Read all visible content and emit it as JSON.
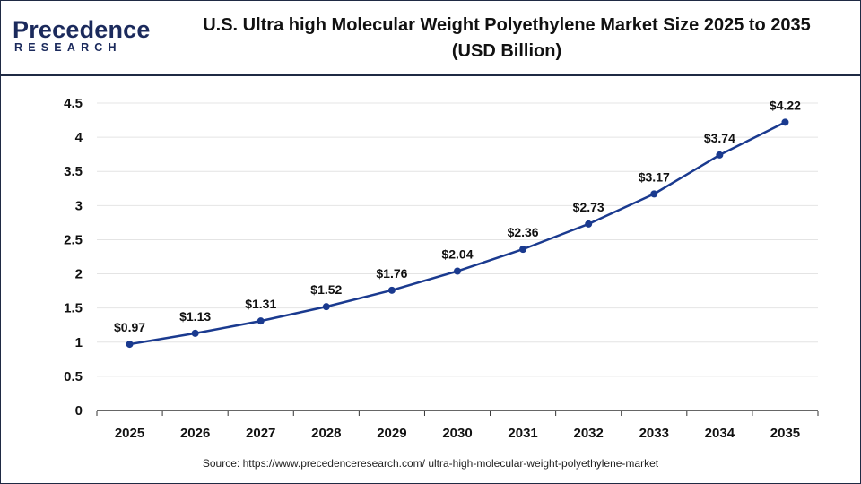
{
  "logo": {
    "brand_first": "P",
    "brand_rest": "recedence",
    "brand_sub": "RESEARCH"
  },
  "title_line1": "U.S. Ultra high Molecular Weight Polyethylene Market  Size 2025 to 2035",
  "title_line2": "(USD Billion)",
  "source": "Source: https://www.precedenceresearch.com/ ultra-high-molecular-weight-polyethylene-market",
  "colors": {
    "line": "#1a3a8f",
    "grid": "#e4e4e4",
    "axis": "#333333"
  },
  "chart_data": {
    "type": "line",
    "title": "U.S. Ultra high Molecular Weight Polyethylene Market  Size 2025 to 2035",
    "subtitle": "(USD Billion)",
    "x": [
      "2025",
      "2026",
      "2027",
      "2028",
      "2029",
      "2030",
      "2031",
      "2032",
      "2033",
      "2034",
      "2035"
    ],
    "series": [
      {
        "values": [
          0.97,
          1.13,
          1.31,
          1.52,
          1.76,
          2.04,
          2.36,
          2.73,
          3.17,
          3.74,
          4.22
        ],
        "labels": [
          "$0.97",
          "$1.13",
          "$1.31",
          "$1.52",
          "$1.76",
          "$2.04",
          "$2.36",
          "$2.73",
          "$3.17",
          "$3.74",
          "$4.22"
        ]
      }
    ],
    "yticks": [
      "0",
      "0.5",
      "1",
      "1.5",
      "2",
      "2.5",
      "3",
      "3.5",
      "4",
      "4.5"
    ],
    "ylim": [
      0,
      4.5
    ],
    "xlabel": "",
    "ylabel": "",
    "grid": true,
    "legend": "none"
  }
}
